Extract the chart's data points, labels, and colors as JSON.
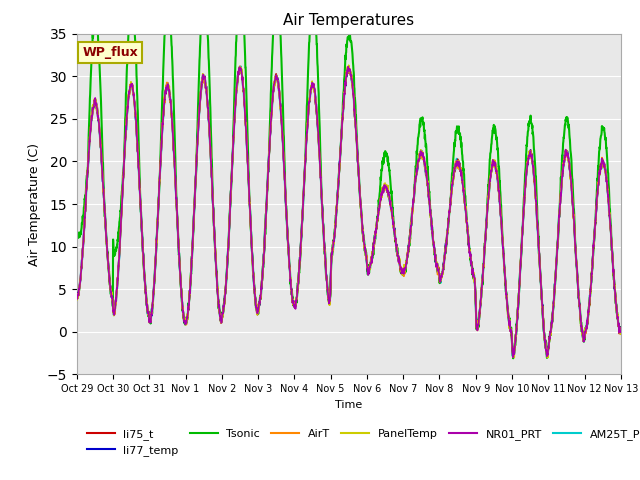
{
  "title": "Air Temperatures",
  "ylabel": "Air Temperature (C)",
  "xlabel": "Time",
  "ylim": [
    -5,
    35
  ],
  "background_color": "#e8e8e8",
  "series": {
    "li75_t": {
      "color": "#cc0000",
      "lw": 1.2,
      "zorder": 3
    },
    "li77_temp": {
      "color": "#0000cc",
      "lw": 1.2,
      "zorder": 3
    },
    "Tsonic": {
      "color": "#00bb00",
      "lw": 1.5,
      "zorder": 2
    },
    "AirT": {
      "color": "#ff8800",
      "lw": 1.2,
      "zorder": 3
    },
    "PanelTemp": {
      "color": "#cccc00",
      "lw": 1.2,
      "zorder": 3
    },
    "NR01_PRT": {
      "color": "#aa00aa",
      "lw": 1.2,
      "zorder": 3
    },
    "AM25T_PRT": {
      "color": "#00cccc",
      "lw": 1.5,
      "zorder": 2
    }
  },
  "xtick_labels": [
    "Oct 29",
    "Oct 30",
    "Oct 31",
    "Nov 1",
    "Nov 2",
    "Nov 3",
    "Nov 4",
    "Nov 5",
    "Nov 6",
    "Nov 7",
    "Nov 8",
    "Nov 9",
    "Nov 10",
    "Nov 11",
    "Nov 12",
    "Nov 13"
  ],
  "annotation_text": "WP_flux",
  "annotation_color": "#8b0000",
  "annotation_bg": "#ffffcc",
  "annotation_border": "#aaaa00"
}
